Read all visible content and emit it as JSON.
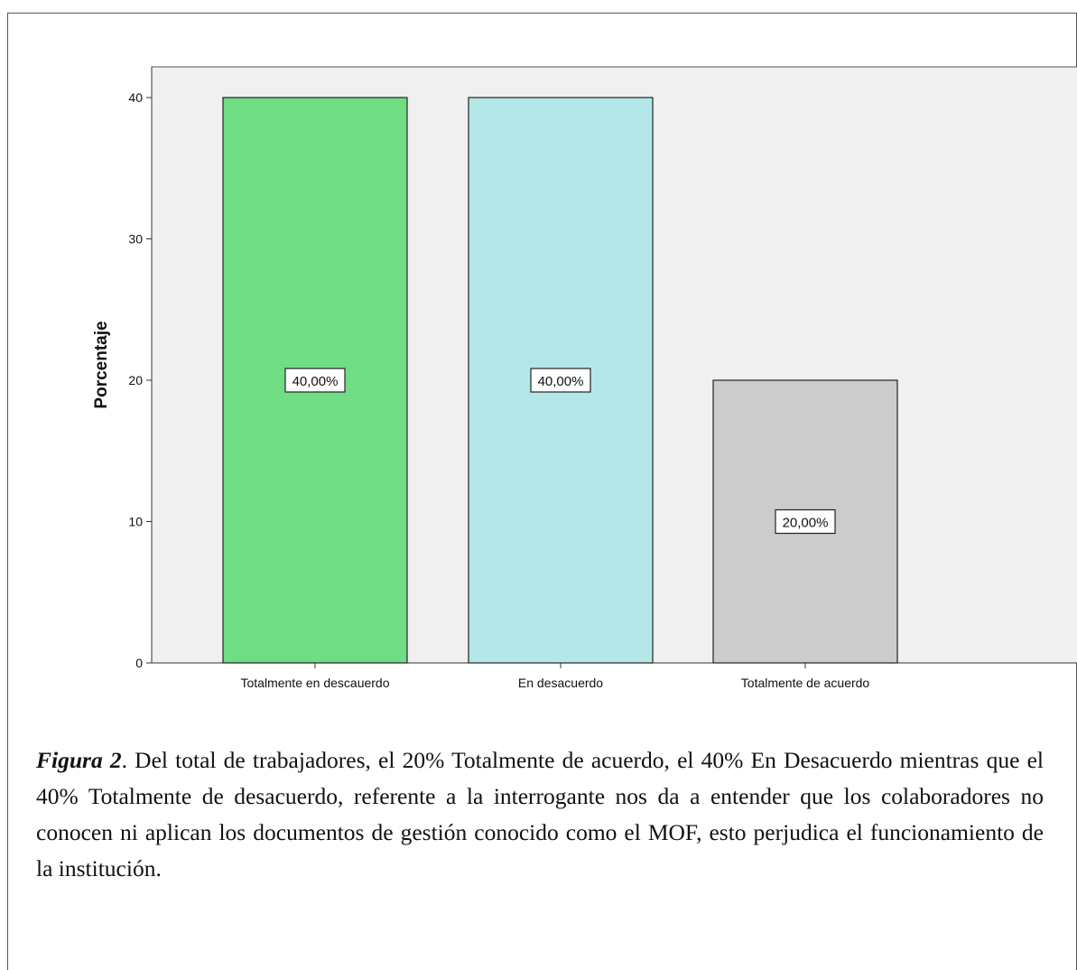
{
  "chart_data": {
    "type": "bar",
    "categories": [
      "Totalmente en descauerdo",
      "En desacuerdo",
      "Totalmente de acuerdo"
    ],
    "values": [
      40,
      40,
      20
    ],
    "data_labels": [
      "40,00%",
      "40,00%",
      "20,00%"
    ],
    "ylabel": "Porcentaje",
    "xlabel": "",
    "ylim": [
      0,
      42
    ],
    "yticks": [
      0,
      10,
      20,
      30,
      40
    ],
    "grid": false,
    "legend": "none",
    "plot_background": "#f0f0f0",
    "bar_colors": [
      "#70dc84",
      "#b4e8e8",
      "#cccccc"
    ]
  },
  "caption": {
    "figure_label": "Figura 2",
    "text": ". Del total de trabajadores, el 20% Totalmente de acuerdo, el 40% En Desacuerdo mientras que el 40% Totalmente de desacuerdo, referente a la interrogante nos da a entender que los colaboradores no conocen ni aplican los documentos de gestión conocido como el MOF, esto perjudica el funcionamiento de la institución."
  }
}
